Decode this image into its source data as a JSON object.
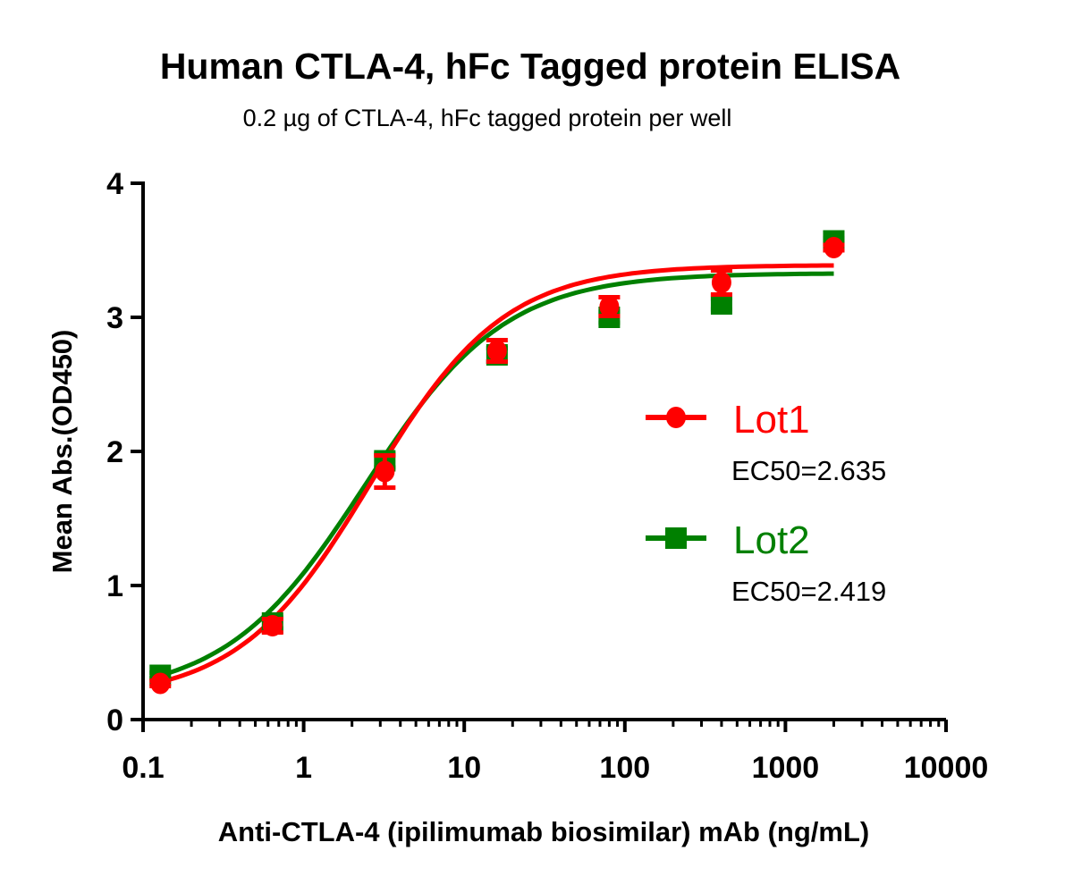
{
  "chart_data": {
    "type": "scatter",
    "title": "Human CTLA-4, hFc Tagged protein ELISA",
    "subtitle": "0.2 µg of CTLA-4, hFc tagged protein per well",
    "xlabel": "Anti-CTLA-4 (ipilimumab biosimilar) mAb (ng/mL)",
    "ylabel": "Mean Abs.(OD450)",
    "xscale": "log",
    "xlim": [
      0.1,
      10000
    ],
    "ylim": [
      0,
      4
    ],
    "xticks": [
      "0.1",
      "1",
      "10",
      "100",
      "1000",
      "10000"
    ],
    "xtick_values": [
      0.1,
      1,
      10,
      100,
      1000,
      10000
    ],
    "yticks": [
      "0",
      "1",
      "2",
      "3",
      "4"
    ],
    "ytick_values": [
      0,
      1,
      2,
      3,
      4
    ],
    "grid": false,
    "legend_placement": "right",
    "x": [
      0.128,
      0.64,
      3.2,
      16,
      80,
      400,
      2000
    ],
    "series": [
      {
        "name": "Lot1",
        "color": "#ff0000",
        "marker": "circle",
        "ec50_label": "EC50=2.635",
        "ec50": 2.635,
        "values": [
          0.27,
          0.7,
          1.85,
          2.75,
          3.08,
          3.26,
          3.52
        ],
        "yerr": [
          0.02,
          0.05,
          0.12,
          0.08,
          0.07,
          0.09,
          0.02
        ]
      },
      {
        "name": "Lot2",
        "color": "#008000",
        "marker": "square",
        "ec50_label": "EC50=2.419",
        "ec50": 2.419,
        "values": [
          0.33,
          0.72,
          1.93,
          2.72,
          3.0,
          3.1,
          3.57
        ],
        "yerr": [
          0.02,
          0.04,
          0.05,
          0.05,
          0.04,
          0.04,
          0.02
        ]
      }
    ]
  }
}
